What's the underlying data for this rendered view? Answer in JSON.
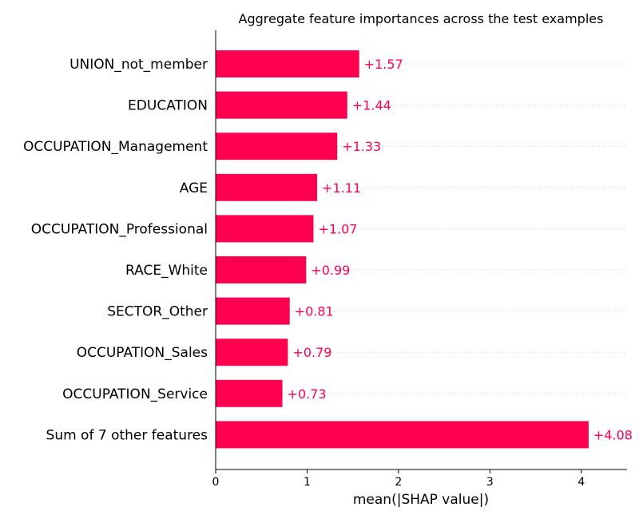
{
  "chart_data": {
    "type": "bar",
    "orientation": "horizontal",
    "title": "Aggregate feature importances across the test examples",
    "xlabel": "mean(|SHAP value|)",
    "ylabel": "",
    "categories": [
      "UNION_not_member",
      "EDUCATION",
      "OCCUPATION_Management",
      "AGE",
      "OCCUPATION_Professional",
      "RACE_White",
      "SECTOR_Other",
      "OCCUPATION_Sales",
      "OCCUPATION_Service",
      "Sum of 7 other features"
    ],
    "values": [
      1.57,
      1.44,
      1.33,
      1.11,
      1.07,
      0.99,
      0.81,
      0.79,
      0.73,
      4.08
    ],
    "value_labels": [
      "+1.57",
      "+1.44",
      "+1.33",
      "+1.11",
      "+1.07",
      "+0.99",
      "+0.81",
      "+0.79",
      "+0.73",
      "+4.08"
    ],
    "xlim": [
      0,
      4.5
    ],
    "xticks": [
      0,
      1,
      2,
      3,
      4
    ],
    "xtick_labels": [
      "0",
      "1",
      "2",
      "3",
      "4"
    ],
    "grid": "horizontal dotted",
    "colors": {
      "bar": "#ff0051",
      "label": "#ff0051",
      "grid": "#cccccc",
      "axis": "#000000"
    }
  }
}
